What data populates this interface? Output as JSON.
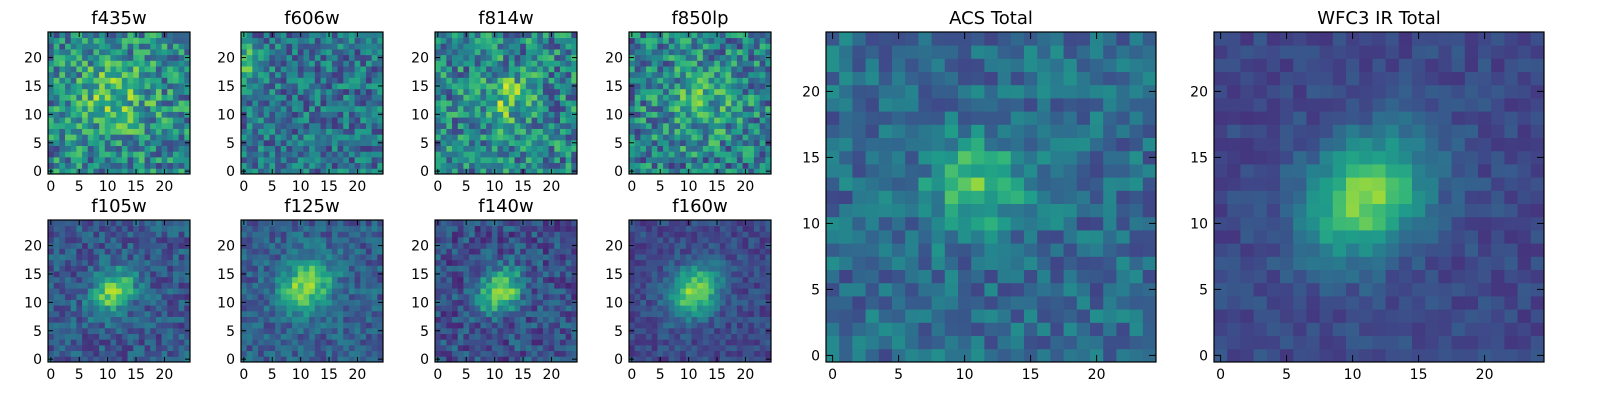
{
  "figure": {
    "description_visible": false
  },
  "chart_data": [
    {
      "type": "heatmap",
      "title": "f435w",
      "grid": 25,
      "colormap": "viridis",
      "xlim": [
        0,
        24
      ],
      "ylim": [
        0,
        24
      ],
      "xticks": [
        "0",
        "5",
        "10",
        "15",
        "20"
      ],
      "yticks": [
        "0",
        "5",
        "10",
        "15",
        "20"
      ],
      "structure": {
        "kind": "noise",
        "peak_x": 11,
        "peak_y": 13,
        "amplitude": 0.25,
        "sigma": 5,
        "background": 0.45,
        "noise": 0.55
      }
    },
    {
      "type": "heatmap",
      "title": "f606w",
      "grid": 25,
      "colormap": "viridis",
      "xlim": [
        0,
        24
      ],
      "ylim": [
        0,
        24
      ],
      "xticks": [
        "0",
        "5",
        "10",
        "15",
        "20"
      ],
      "yticks": [
        "0",
        "5",
        "10",
        "15",
        "20"
      ],
      "structure": {
        "kind": "noise",
        "peak_x": 1,
        "peak_y": 19,
        "amplitude": 0.35,
        "sigma": 2,
        "background": 0.38,
        "noise": 0.45
      }
    },
    {
      "type": "heatmap",
      "title": "f814w",
      "grid": 25,
      "colormap": "viridis",
      "xlim": [
        0,
        24
      ],
      "ylim": [
        0,
        24
      ],
      "xticks": [
        "0",
        "5",
        "10",
        "15",
        "20"
      ],
      "yticks": [
        "0",
        "5",
        "10",
        "15",
        "20"
      ],
      "structure": {
        "kind": "noise",
        "peak_x": 12,
        "peak_y": 13,
        "amplitude": 0.3,
        "sigma": 3,
        "background": 0.45,
        "noise": 0.55
      }
    },
    {
      "type": "heatmap",
      "title": "f850lp",
      "grid": 25,
      "colormap": "viridis",
      "xlim": [
        0,
        24
      ],
      "ylim": [
        0,
        24
      ],
      "xticks": [
        "0",
        "5",
        "10",
        "15",
        "20"
      ],
      "yticks": [
        "0",
        "5",
        "10",
        "15",
        "20"
      ],
      "structure": {
        "kind": "noise",
        "peak_x": 12,
        "peak_y": 12,
        "amplitude": 0.2,
        "sigma": 5,
        "background": 0.42,
        "noise": 0.55
      }
    },
    {
      "type": "heatmap",
      "title": "f105w",
      "grid": 25,
      "colormap": "viridis",
      "xlim": [
        0,
        24
      ],
      "ylim": [
        0,
        24
      ],
      "xticks": [
        "0",
        "5",
        "10",
        "15",
        "20"
      ],
      "yticks": [
        "0",
        "5",
        "10",
        "15",
        "20"
      ],
      "structure": {
        "kind": "source",
        "peak_x": 11,
        "peak_y": 12,
        "amplitude": 0.55,
        "sigma": 2.5,
        "background": 0.28,
        "noise": 0.3
      }
    },
    {
      "type": "heatmap",
      "title": "f125w",
      "grid": 25,
      "colormap": "viridis",
      "xlim": [
        0,
        24
      ],
      "ylim": [
        0,
        24
      ],
      "xticks": [
        "0",
        "5",
        "10",
        "15",
        "20"
      ],
      "yticks": [
        "0",
        "5",
        "10",
        "15",
        "20"
      ],
      "structure": {
        "kind": "source",
        "peak_x": 11,
        "peak_y": 13,
        "amplitude": 0.55,
        "sigma": 3,
        "background": 0.3,
        "noise": 0.28
      }
    },
    {
      "type": "heatmap",
      "title": "f140w",
      "grid": 25,
      "colormap": "viridis",
      "xlim": [
        0,
        24
      ],
      "ylim": [
        0,
        24
      ],
      "xticks": [
        "0",
        "5",
        "10",
        "15",
        "20"
      ],
      "yticks": [
        "0",
        "5",
        "10",
        "15",
        "20"
      ],
      "structure": {
        "kind": "source",
        "peak_x": 11,
        "peak_y": 12,
        "amplitude": 0.6,
        "sigma": 2.5,
        "background": 0.25,
        "noise": 0.32
      }
    },
    {
      "type": "heatmap",
      "title": "f160w",
      "grid": 25,
      "colormap": "viridis",
      "xlim": [
        0,
        24
      ],
      "ylim": [
        0,
        24
      ],
      "xticks": [
        "0",
        "5",
        "10",
        "15",
        "20"
      ],
      "yticks": [
        "0",
        "5",
        "10",
        "15",
        "20"
      ],
      "structure": {
        "kind": "source",
        "peak_x": 11,
        "peak_y": 12,
        "amplitude": 0.6,
        "sigma": 3,
        "background": 0.22,
        "noise": 0.2
      }
    },
    {
      "type": "heatmap",
      "title": "ACS Total",
      "grid": 25,
      "colormap": "viridis",
      "xlim": [
        0,
        24
      ],
      "ylim": [
        0,
        24
      ],
      "xticks": [
        "0",
        "5",
        "10",
        "15",
        "20"
      ],
      "yticks": [
        "0",
        "5",
        "10",
        "15",
        "20"
      ],
      "structure": {
        "kind": "noise",
        "peak_x": 11,
        "peak_y": 13,
        "amplitude": 0.35,
        "sigma": 2.5,
        "background": 0.35,
        "noise": 0.3
      }
    },
    {
      "type": "heatmap",
      "title": "WFC3 IR Total",
      "grid": 25,
      "colormap": "viridis",
      "xlim": [
        0,
        24
      ],
      "ylim": [
        0,
        24
      ],
      "xticks": [
        "0",
        "5",
        "10",
        "15",
        "20"
      ],
      "yticks": [
        "0",
        "5",
        "10",
        "15",
        "20"
      ],
      "structure": {
        "kind": "source",
        "peak_x": 11,
        "peak_y": 12,
        "amplitude": 0.6,
        "sigma": 3,
        "background": 0.22,
        "noise": 0.14
      }
    }
  ]
}
